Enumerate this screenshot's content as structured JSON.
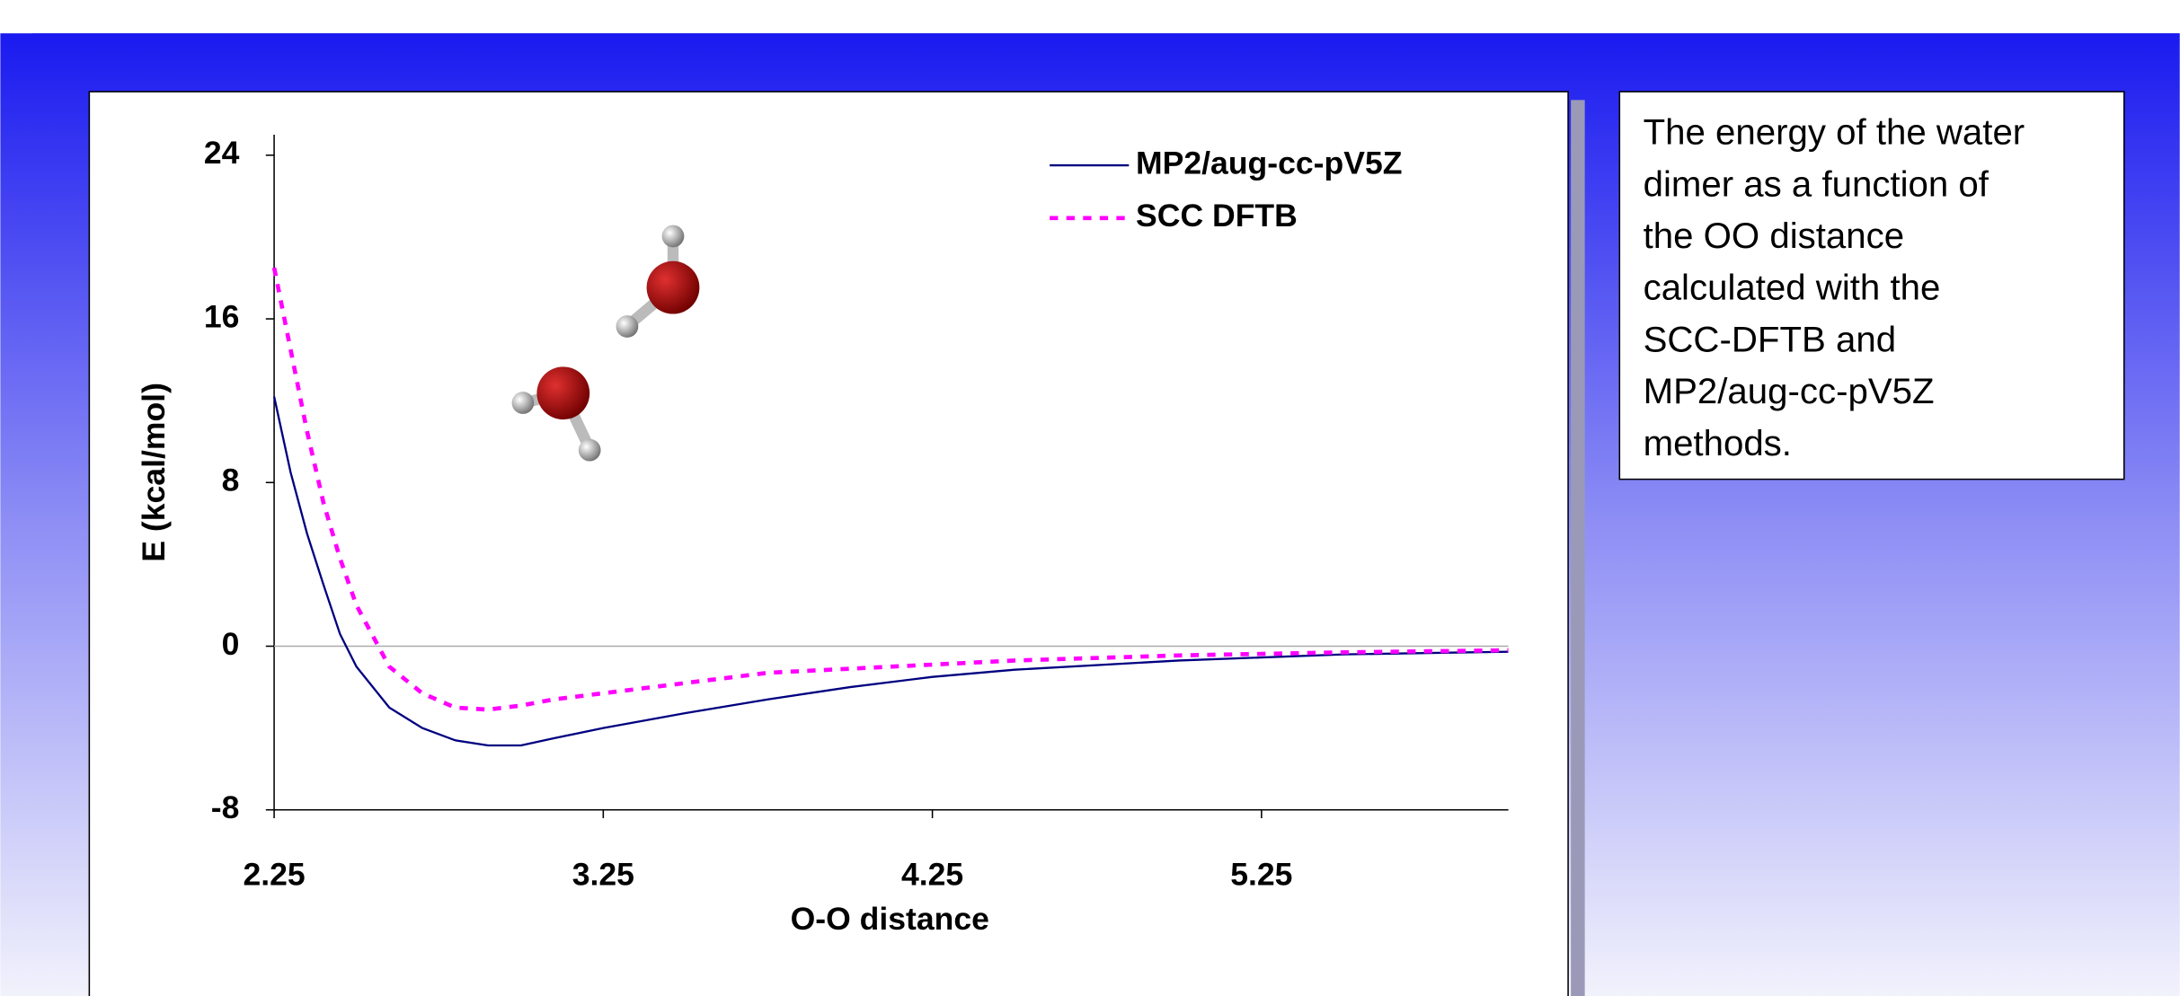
{
  "chart_data": {
    "type": "line",
    "xlabel": "O-O distance",
    "ylabel": "E (kcal/mol)",
    "xlim": [
      2.25,
      6.0
    ],
    "xticks": [
      2.25,
      3.25,
      4.25,
      5.25
    ],
    "ylim": [
      -8,
      25
    ],
    "yticks": [
      -8,
      0,
      8,
      16,
      24
    ],
    "legend": "upper right",
    "series": [
      {
        "name": "MP2/aug-cc-pV5Z",
        "color": "#000080",
        "dash": false,
        "x": [
          2.25,
          2.3,
          2.35,
          2.4,
          2.45,
          2.5,
          2.6,
          2.7,
          2.8,
          2.9,
          3.0,
          3.1,
          3.25,
          3.5,
          3.75,
          4.0,
          4.25,
          4.5,
          5.0,
          5.5,
          6.0
        ],
        "values": [
          12.2,
          8.5,
          5.5,
          3.0,
          0.6,
          -1.0,
          -3.0,
          -4.0,
          -4.6,
          -4.85,
          -4.85,
          -4.5,
          -4.0,
          -3.27,
          -2.6,
          -2.0,
          -1.5,
          -1.15,
          -0.7,
          -0.4,
          -0.27
        ]
      },
      {
        "name": "SCC DFTB",
        "color": "#ff00ff",
        "dash": true,
        "x": [
          2.25,
          2.3,
          2.35,
          2.4,
          2.45,
          2.5,
          2.6,
          2.7,
          2.8,
          2.9,
          3.0,
          3.1,
          3.25,
          3.5,
          3.75,
          4.0,
          4.25,
          4.5,
          5.0,
          5.5,
          6.0
        ],
        "values": [
          18.5,
          14.5,
          10.5,
          7.0,
          4.3,
          2.0,
          -1.0,
          -2.3,
          -3.0,
          -3.1,
          -2.9,
          -2.6,
          -2.3,
          -1.8,
          -1.3,
          -1.1,
          -0.9,
          -0.7,
          -0.45,
          -0.3,
          -0.2
        ]
      }
    ]
  },
  "caption": {
    "lines": [
      "The energy of the water",
      "dimer as a function of",
      "the OO distance",
      "calculated with the",
      "SCC-DFTB and",
      "MP2/aug-cc-pV5Z",
      "methods."
    ]
  }
}
